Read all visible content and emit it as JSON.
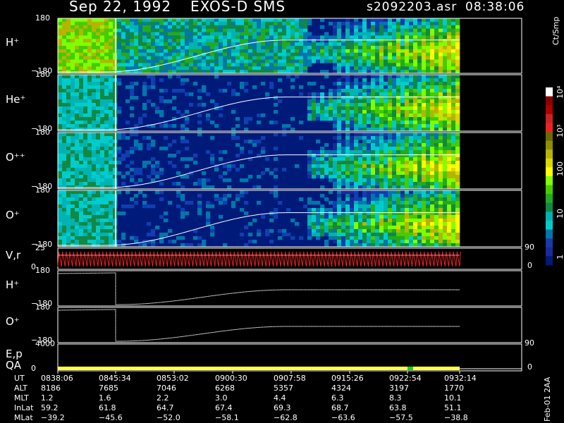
{
  "header": {
    "date": "Sep 22, 1992",
    "instrument": "EXOS-D SMS",
    "file": "s2092203.asr",
    "time": "08:38:06"
  },
  "panels": [
    {
      "label": "H⁺",
      "ytop": "180",
      "ybot": "−180",
      "kind": "spectrogram"
    },
    {
      "label": "He⁺",
      "ytop": "180",
      "ybot": "−180",
      "kind": "spectrogram"
    },
    {
      "label": "O⁺⁺",
      "ytop": "180",
      "ybot": "−180",
      "kind": "spectrogram"
    },
    {
      "label": "O⁺",
      "ytop": "180",
      "ybot": "−180",
      "kind": "spectrogram"
    },
    {
      "label": "V,r",
      "ytop": "25",
      "ybot": "0",
      "right_top": "90",
      "right_bot": "0",
      "kind": "vr"
    },
    {
      "label": "H⁺",
      "ytop": "180",
      "ybot": "−180",
      "kind": "line"
    },
    {
      "label": "O⁺",
      "ytop": "180",
      "ybot": "−180",
      "kind": "line"
    },
    {
      "label": "E,p",
      "label2": "QA",
      "ytop": "4000",
      "ybot": "0",
      "right_top": "90",
      "right_bot": "0",
      "kind": "qa"
    }
  ],
  "colorbar": {
    "unit": "Ct/Smp",
    "labels": [
      "10⁴",
      "10³",
      "100",
      "10",
      "1"
    ],
    "colors": [
      "#ffffff",
      "#8b0000",
      "#b00000",
      "#cc2222",
      "#ee2222",
      "#6b6b00",
      "#8e8e00",
      "#b5b500",
      "#d9d900",
      "#ffff00",
      "#7fff00",
      "#44cc00",
      "#22aa22",
      "#118844",
      "#00b3b3",
      "#00cccc",
      "#0077aa",
      "#1a3aaa",
      "#1a2a99",
      "#001a7a"
    ]
  },
  "table": {
    "rows": [
      {
        "name": "UT",
        "values": [
          "0838:06",
          "0845:34",
          "0853:02",
          "0900:30",
          "0907:58",
          "0915:26",
          "0922:54",
          "0932:14"
        ]
      },
      {
        "name": "ALT",
        "values": [
          "8186",
          "7685",
          "7046",
          "6268",
          "5357",
          "4324",
          "3197",
          "1770"
        ]
      },
      {
        "name": "MLT",
        "values": [
          "1.2",
          "1.6",
          "2.2",
          "3.0",
          "4.4",
          "6.3",
          "8.3",
          "10.1"
        ]
      },
      {
        "name": "InLat",
        "values": [
          "59.2",
          "61.8",
          "64.7",
          "67.4",
          "69.3",
          "68.7",
          "63.8",
          "51.1"
        ]
      },
      {
        "name": "MLat",
        "values": [
          "−39.2",
          "−45.6",
          "−52.0",
          "−58.1",
          "−62.8",
          "−63.6",
          "−57.5",
          "−38.8"
        ]
      }
    ]
  },
  "footer_vertical": "Feb-01 2AA",
  "chart_data": {
    "type": "heatmap",
    "title": "Sep 22, 1992   EXOS-D SMS",
    "x_tick_labels": [
      "0838:06",
      "0845:34",
      "0853:02",
      "0900:30",
      "0907:58",
      "0915:26",
      "0922:54",
      "0932:14"
    ],
    "panels": [
      "H+",
      "He+",
      "O++",
      "O+",
      "V,r",
      "H+",
      "O+",
      "E,p QA"
    ],
    "ylim_pitch": [
      -180,
      180
    ],
    "ylim_vr": [
      0,
      25
    ],
    "ylim_ep": [
      0,
      4000
    ],
    "colorbar_range_ct_per_smp": [
      1,
      10000
    ],
    "colorbar_scale": "log"
  }
}
